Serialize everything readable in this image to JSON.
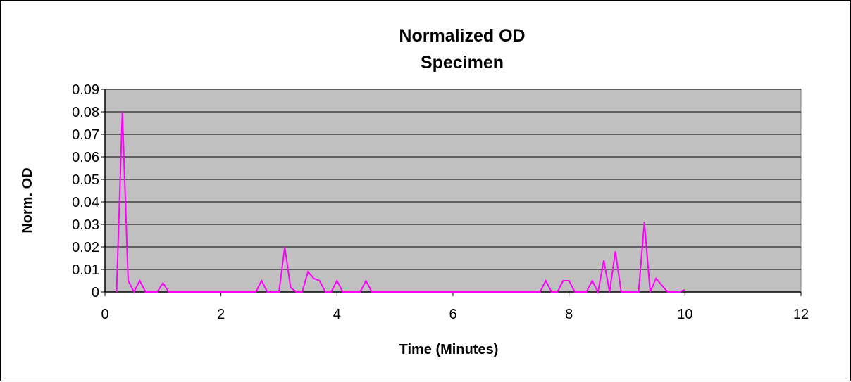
{
  "chart_data": {
    "type": "line",
    "title": [
      "Normalized OD",
      "Specimen"
    ],
    "xlabel": "Time (Minutes)",
    "ylabel": "Norm. OD",
    "xlim": [
      0,
      12
    ],
    "ylim": [
      0,
      0.09
    ],
    "x_ticks": [
      "0",
      "2",
      "4",
      "6",
      "8",
      "10",
      "12"
    ],
    "y_ticks": [
      "0",
      "0.01",
      "0.02",
      "0.03",
      "0.04",
      "0.05",
      "0.06",
      "0.07",
      "0.08",
      "0.09"
    ],
    "grid": true,
    "legend": "none",
    "colors": {
      "plot_area": "#c0c0c0",
      "line": "#ff00ff",
      "grid": "#000000"
    },
    "series": [
      {
        "x": [
          0.2,
          0.3,
          0.4,
          0.5,
          0.6,
          0.7,
          0.8,
          0.9,
          1.0,
          1.1,
          1.2,
          1.3,
          1.4,
          1.5,
          1.6,
          1.7,
          1.8,
          1.9,
          2.0,
          2.1,
          2.2,
          2.3,
          2.4,
          2.5,
          2.6,
          2.7,
          2.8,
          2.9,
          3.0,
          3.1,
          3.2,
          3.3,
          3.4,
          3.5,
          3.6,
          3.7,
          3.8,
          3.9,
          4.0,
          4.1,
          4.2,
          4.3,
          4.4,
          4.5,
          4.6,
          4.7,
          4.8,
          4.9,
          5.0,
          5.1,
          5.2,
          5.3,
          5.4,
          5.5,
          5.6,
          5.7,
          5.8,
          5.9,
          6.0,
          6.1,
          6.2,
          6.3,
          6.4,
          6.5,
          6.6,
          6.7,
          6.8,
          6.9,
          7.0,
          7.1,
          7.2,
          7.3,
          7.4,
          7.5,
          7.6,
          7.7,
          7.8,
          7.9,
          8.0,
          8.1,
          8.2,
          8.3,
          8.4,
          8.5,
          8.6,
          8.7,
          8.8,
          8.9,
          9.0,
          9.1,
          9.2,
          9.3,
          9.4,
          9.5,
          9.6,
          9.7,
          9.8,
          9.9,
          10.0
        ],
        "values": [
          0,
          0.08,
          0.005,
          0,
          0.005,
          0,
          0,
          0,
          0.004,
          0,
          0,
          0,
          0,
          0,
          0,
          0,
          0,
          0,
          0,
          0,
          0,
          0,
          0,
          0,
          0,
          0.005,
          0,
          0,
          0,
          0.02,
          0.002,
          0,
          0,
          0.009,
          0.006,
          0.005,
          0,
          0,
          0.005,
          0,
          0,
          0,
          0,
          0.005,
          0,
          0,
          0,
          0,
          0,
          0,
          0,
          0,
          0,
          0,
          0,
          0,
          0,
          0,
          0,
          0,
          0,
          0,
          0,
          0,
          0,
          0,
          0,
          0,
          0,
          0,
          0,
          0,
          0,
          0,
          0.005,
          0,
          0,
          0.005,
          0.005,
          0,
          0,
          0,
          0.005,
          0,
          0.014,
          0,
          0.018,
          0,
          0,
          0,
          0,
          0.031,
          0,
          0.006,
          0.003,
          0,
          0,
          0,
          0.001
        ]
      }
    ]
  }
}
